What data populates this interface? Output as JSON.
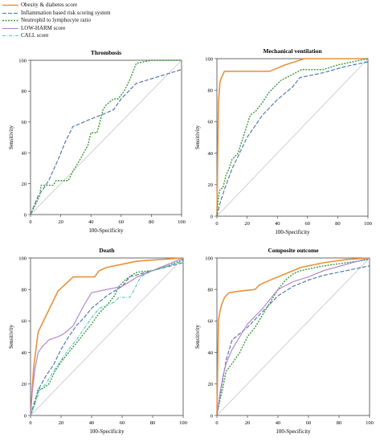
{
  "legend": [
    {
      "label": "Obesity & diabetes score",
      "color": "#e8913c",
      "dash": "",
      "width": 1.6
    },
    {
      "label": "Inflammation based risk scoring system",
      "color": "#4a6fa5",
      "dash": "5 2",
      "width": 1.1
    },
    {
      "label": "Neutrophil to lymphocyte ratio",
      "color": "#3a9a3a",
      "dash": "2 1.5",
      "width": 1.4
    },
    {
      "label": "LOW-HARM score",
      "color": "#b07fc7",
      "dash": "",
      "width": 1.1
    },
    {
      "label": "CALL score",
      "color": "#4fc0c0",
      "dash": "4 1.5 1 1.5",
      "width": 1.1
    }
  ],
  "chart_data": [
    {
      "type": "line",
      "title": "Thrombosis",
      "xlabel": "100-Specificity",
      "ylabel": "Sensitivity",
      "xlim": [
        0,
        100
      ],
      "ylim": [
        0,
        100
      ],
      "ticks": [
        "0",
        "20",
        "40",
        "60",
        "80",
        "100"
      ],
      "reference_line": true,
      "series": [
        {
          "name": "Inflammation based risk scoring system",
          "x": [
            0,
            2,
            5,
            8,
            12,
            18,
            23,
            28,
            33,
            40,
            48,
            55,
            60,
            65,
            70,
            80,
            90,
            100
          ],
          "y": [
            0,
            5,
            12,
            16,
            22,
            35,
            47,
            57,
            59,
            62,
            65,
            68,
            75,
            80,
            85,
            88,
            91,
            94
          ]
        },
        {
          "name": "Neutrophil to lymphocyte ratio",
          "x": [
            0,
            3,
            6,
            7,
            10,
            15,
            17,
            20,
            25,
            28,
            33,
            38,
            40,
            44,
            46,
            48,
            50,
            55,
            58,
            62,
            66,
            70,
            80,
            90,
            100
          ],
          "y": [
            0,
            6,
            12,
            19,
            19,
            19,
            22,
            22,
            22,
            28,
            36,
            45,
            53,
            53,
            60,
            68,
            71,
            75,
            75,
            80,
            88,
            98,
            100,
            100,
            100
          ]
        }
      ]
    },
    {
      "type": "line",
      "title": "Mechanical ventilation",
      "xlabel": "100-Specificity",
      "ylabel": "Sensitivity",
      "xlim": [
        0,
        100
      ],
      "ylim": [
        0,
        100
      ],
      "ticks": [
        "0",
        "20",
        "40",
        "60",
        "80",
        "100"
      ],
      "reference_line": true,
      "series": [
        {
          "name": "Obesity & diabetes score",
          "x": [
            0,
            1,
            2,
            3,
            5,
            35,
            45,
            58,
            100
          ],
          "y": [
            0,
            72,
            85,
            88,
            92,
            92,
            96,
            100,
            100
          ]
        },
        {
          "name": "Inflammation based risk scoring system",
          "x": [
            0,
            2,
            5,
            10,
            15,
            20,
            30,
            40,
            50,
            55,
            70,
            85,
            100
          ],
          "y": [
            0,
            8,
            17,
            30,
            40,
            50,
            64,
            74,
            82,
            88,
            91,
            95,
            98
          ]
        },
        {
          "name": "Neutrophil to lymphocyte ratio",
          "x": [
            0,
            1,
            2,
            4,
            6,
            8,
            10,
            14,
            18,
            22,
            26,
            30,
            34,
            38,
            42,
            48,
            52,
            56,
            70,
            80,
            90,
            100
          ],
          "y": [
            0,
            12,
            17,
            18,
            26,
            30,
            36,
            40,
            52,
            64,
            67,
            72,
            78,
            82,
            86,
            89,
            91,
            93,
            93,
            96,
            98,
            100
          ]
        }
      ]
    },
    {
      "type": "line",
      "title": "Death",
      "xlabel": "100-Specificity",
      "ylabel": "Sensitivity",
      "xlim": [
        0,
        100
      ],
      "ylim": [
        0,
        100
      ],
      "ticks": [
        "0",
        "20",
        "40",
        "60",
        "80",
        "100"
      ],
      "reference_line": true,
      "series": [
        {
          "name": "Obesity & diabetes score",
          "x": [
            0,
            2,
            5,
            10,
            18,
            28,
            42,
            45,
            50,
            60,
            70,
            85,
            100
          ],
          "y": [
            0,
            30,
            53,
            63,
            79,
            88,
            88,
            92,
            94,
            96,
            98,
            99,
            100
          ]
        },
        {
          "name": "Inflammation based risk scoring system",
          "x": [
            0,
            3,
            6,
            10,
            15,
            20,
            25,
            30,
            35,
            40,
            50,
            60,
            65,
            80,
            100
          ],
          "y": [
            0,
            10,
            18,
            25,
            32,
            42,
            50,
            57,
            62,
            68,
            76,
            82,
            88,
            92,
            97
          ]
        },
        {
          "name": "Neutrophil to lymphocyte ratio",
          "x": [
            0,
            3,
            5,
            8,
            12,
            16,
            20,
            25,
            30,
            35,
            40,
            45,
            50,
            55,
            58,
            62,
            66,
            70,
            80,
            90,
            100
          ],
          "y": [
            0,
            8,
            17,
            17,
            20,
            28,
            34,
            40,
            46,
            52,
            58,
            65,
            70,
            76,
            82,
            86,
            89,
            91,
            92,
            95,
            99
          ]
        },
        {
          "name": "LOW-HARM score",
          "x": [
            0,
            1,
            3,
            5,
            8,
            12,
            18,
            22,
            28,
            35,
            40,
            45,
            60,
            70,
            80,
            90,
            100
          ],
          "y": [
            0,
            14,
            30,
            40,
            44,
            48,
            50,
            52,
            57,
            70,
            78,
            79,
            82,
            88,
            92,
            96,
            100
          ]
        },
        {
          "name": "CALL score",
          "x": [
            0,
            3,
            6,
            10,
            15,
            20,
            25,
            30,
            35,
            40,
            45,
            55,
            58,
            65,
            68,
            72,
            80,
            90,
            100
          ],
          "y": [
            0,
            8,
            16,
            20,
            28,
            35,
            42,
            48,
            55,
            62,
            68,
            72,
            75,
            75,
            80,
            88,
            92,
            95,
            98
          ]
        }
      ]
    },
    {
      "type": "line",
      "title": "Composite outcome",
      "xlabel": "100-Specificity",
      "ylabel": "Sensitivity",
      "xlim": [
        0,
        100
      ],
      "ylim": [
        0,
        100
      ],
      "ticks": [
        "0",
        "20",
        "40",
        "60",
        "80",
        "100"
      ],
      "reference_line": true,
      "series": [
        {
          "name": "Obesity & diabetes score",
          "x": [
            0,
            1,
            2,
            3,
            5,
            8,
            15,
            25,
            28,
            35,
            45,
            55,
            70,
            85,
            100
          ],
          "y": [
            0,
            60,
            66,
            70,
            75,
            78,
            79,
            80,
            83,
            86,
            90,
            94,
            97,
            99,
            100
          ]
        },
        {
          "name": "Inflammation based risk scoring system",
          "x": [
            0,
            3,
            6,
            10,
            15,
            20,
            25,
            30,
            40,
            50,
            60,
            70,
            85,
            100
          ],
          "y": [
            0,
            18,
            35,
            48,
            52,
            56,
            61,
            66,
            76,
            82,
            86,
            89,
            92,
            95
          ]
        },
        {
          "name": "Neutrophil to lymphocyte ratio",
          "x": [
            0,
            2,
            4,
            6,
            10,
            15,
            20,
            25,
            30,
            35,
            40,
            45,
            50,
            55,
            60,
            70,
            85,
            100
          ],
          "y": [
            0,
            10,
            18,
            28,
            33,
            40,
            50,
            56,
            64,
            72,
            80,
            86,
            90,
            92,
            93,
            95,
            97,
            99
          ]
        },
        {
          "name": "LOW-HARM score",
          "x": [
            0,
            2,
            4,
            6,
            10,
            15,
            20,
            25,
            30,
            35,
            40,
            50,
            60,
            70,
            85,
            100
          ],
          "y": [
            0,
            14,
            25,
            33,
            42,
            50,
            58,
            63,
            68,
            74,
            80,
            85,
            88,
            92,
            96,
            100
          ]
        }
      ]
    }
  ]
}
